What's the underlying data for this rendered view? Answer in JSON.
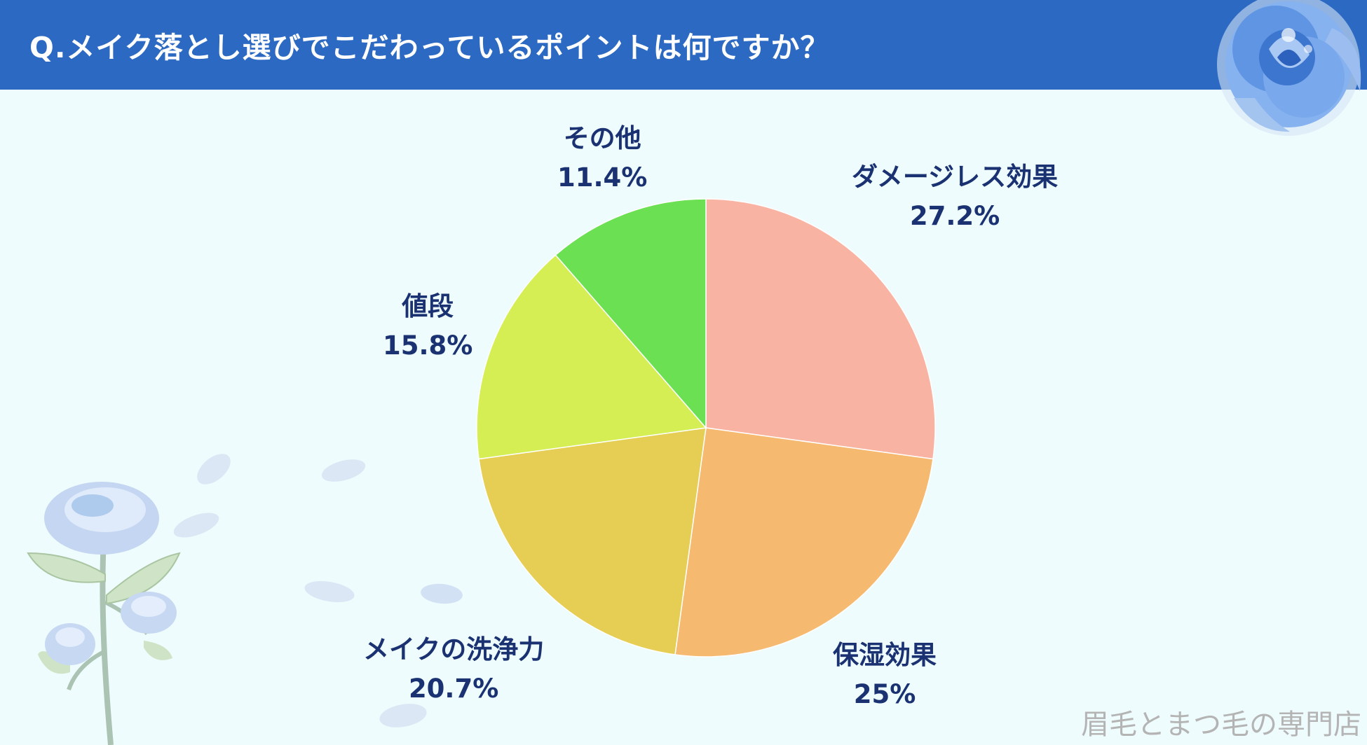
{
  "header": {
    "title": "Q.メイク落とし選びでこだわっているポイントは何ですか？"
  },
  "chart_data": {
    "type": "pie",
    "title": "",
    "slices": [
      {
        "label": "ダメージレス効果",
        "value": 27.2,
        "value_text": "27.2%",
        "color": "#f9b3a2"
      },
      {
        "label": "保湿効果",
        "value": 25,
        "value_text": "25%",
        "color": "#f6b970"
      },
      {
        "label": "メイクの洗浄力",
        "value": 20.7,
        "value_text": "20.7%",
        "color": "#e6ce54"
      },
      {
        "label": "値段",
        "value": 15.8,
        "value_text": "15.8%",
        "color": "#d4ee54"
      },
      {
        "label": "その他",
        "value": 11.4,
        "value_text": "11.4%",
        "color": "#6ae052"
      }
    ],
    "start_angle": "12 o'clock",
    "direction": "clockwise",
    "legend": "none",
    "label_placement": "outside"
  },
  "colors": {
    "header_bg": "#2c69c2",
    "page_bg": "#effcfd",
    "label_text": "#1a3272",
    "watermark_text": "#b4b4b4",
    "rose_primary": "#6f9fe6",
    "rose_pale": "#c9d9ef"
  },
  "decorations": {
    "top_right": "blue-rose-icon",
    "bottom_left": "blue-rose-stem-icon"
  },
  "watermark": "眉毛とまつ毛の専門店"
}
